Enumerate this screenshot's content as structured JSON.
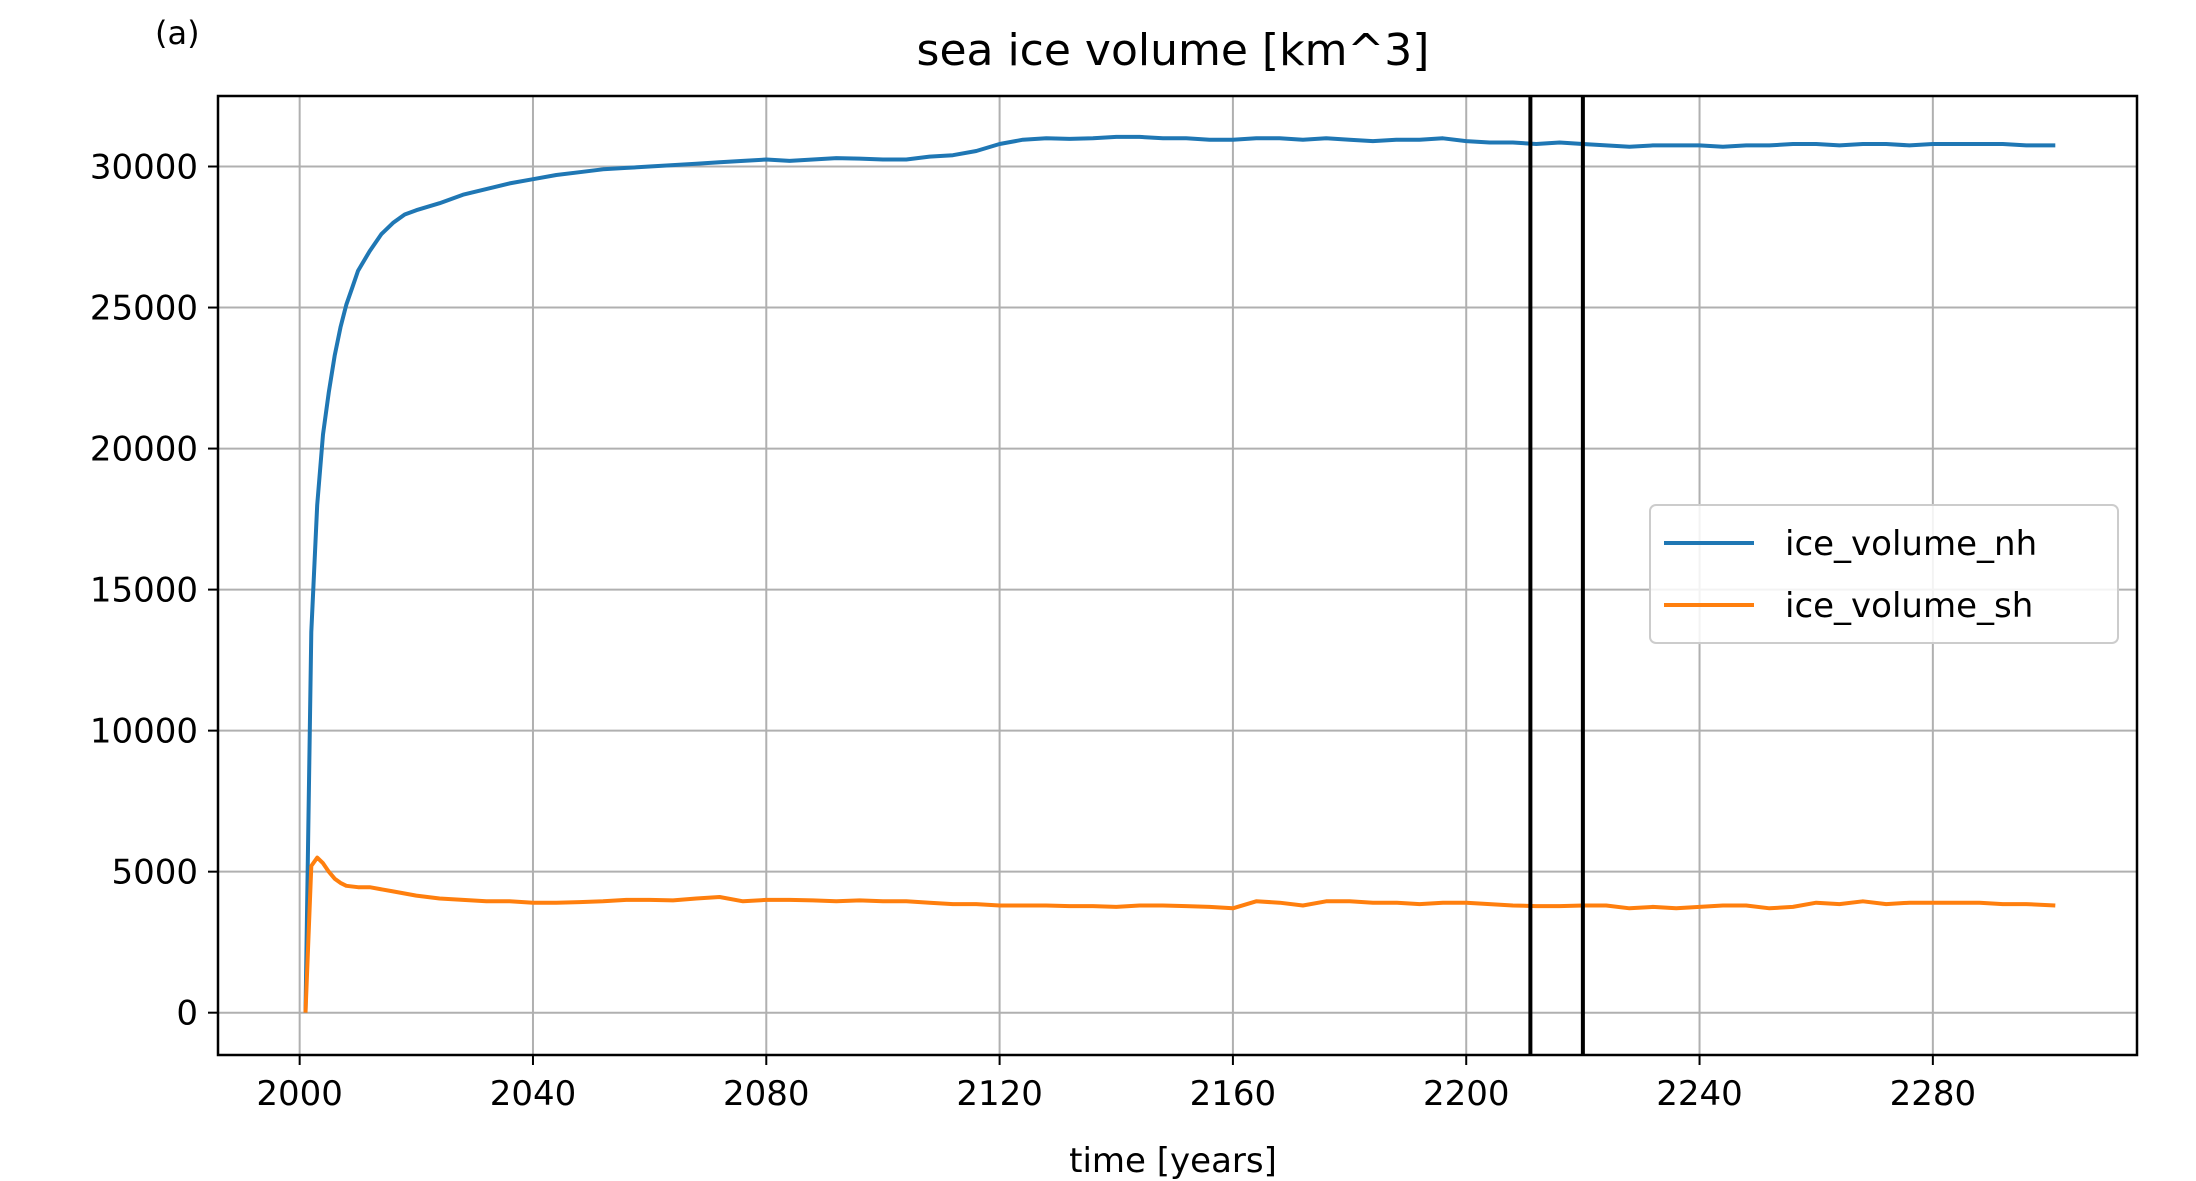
{
  "panel_label": "(a)",
  "chart_data": {
    "type": "line",
    "title": "sea ice volume [km^3]",
    "xlabel": "time [years]",
    "ylabel": "",
    "xlim": [
      1986,
      2315
    ],
    "ylim": [
      -1500,
      32500
    ],
    "xticks": [
      2000,
      2040,
      2080,
      2120,
      2160,
      2200,
      2240,
      2280
    ],
    "yticks": [
      0,
      5000,
      10000,
      15000,
      20000,
      25000,
      30000
    ],
    "grid": true,
    "legend_position": "center-right",
    "vlines": [
      2211,
      2220
    ],
    "series": [
      {
        "name": "ice_volume_nh",
        "color": "#1f77b4",
        "x": [
          2001,
          2002,
          2003,
          2004,
          2005,
          2006,
          2007,
          2008,
          2009,
          2010,
          2012,
          2014,
          2016,
          2018,
          2020,
          2024,
          2028,
          2032,
          2036,
          2040,
          2044,
          2048,
          2052,
          2056,
          2060,
          2064,
          2068,
          2072,
          2076,
          2080,
          2084,
          2088,
          2092,
          2096,
          2100,
          2104,
          2108,
          2112,
          2116,
          2120,
          2124,
          2128,
          2132,
          2136,
          2140,
          2144,
          2148,
          2152,
          2156,
          2160,
          2164,
          2168,
          2172,
          2176,
          2180,
          2184,
          2188,
          2192,
          2196,
          2200,
          2204,
          2208,
          2212,
          2216,
          2220,
          2224,
          2228,
          2232,
          2236,
          2240,
          2244,
          2248,
          2252,
          2256,
          2260,
          2264,
          2268,
          2272,
          2276,
          2280,
          2284,
          2288,
          2292,
          2296,
          2301
        ],
        "values": [
          0,
          13500,
          18000,
          20500,
          22000,
          23300,
          24300,
          25100,
          25700,
          26300,
          27000,
          27600,
          28000,
          28300,
          28450,
          28700,
          29000,
          29200,
          29400,
          29550,
          29700,
          29800,
          29900,
          29950,
          30000,
          30050,
          30100,
          30150,
          30200,
          30250,
          30200,
          30250,
          30300,
          30280,
          30250,
          30250,
          30350,
          30400,
          30550,
          30800,
          30950,
          31000,
          30980,
          31000,
          31050,
          31050,
          31000,
          31000,
          30950,
          30950,
          31000,
          31000,
          30950,
          31000,
          30950,
          30900,
          30950,
          30950,
          31000,
          30900,
          30850,
          30850,
          30800,
          30850,
          30800,
          30750,
          30700,
          30750,
          30750,
          30750,
          30700,
          30750,
          30750,
          30800,
          30800,
          30750,
          30800,
          30800,
          30750,
          30800,
          30800,
          30800,
          30800,
          30750,
          30750
        ]
      },
      {
        "name": "ice_volume_sh",
        "color": "#ff7f0e",
        "x": [
          2001,
          2002,
          2003,
          2004,
          2005,
          2006,
          2007,
          2008,
          2010,
          2012,
          2016,
          2020,
          2024,
          2028,
          2032,
          2036,
          2040,
          2044,
          2048,
          2052,
          2056,
          2060,
          2064,
          2068,
          2072,
          2076,
          2080,
          2084,
          2088,
          2092,
          2096,
          2100,
          2104,
          2108,
          2112,
          2116,
          2120,
          2124,
          2128,
          2132,
          2136,
          2140,
          2144,
          2148,
          2152,
          2156,
          2160,
          2164,
          2168,
          2172,
          2176,
          2180,
          2184,
          2188,
          2192,
          2196,
          2200,
          2204,
          2208,
          2212,
          2216,
          2220,
          2224,
          2228,
          2232,
          2236,
          2240,
          2244,
          2248,
          2252,
          2256,
          2260,
          2264,
          2268,
          2272,
          2276,
          2280,
          2284,
          2288,
          2292,
          2296,
          2301
        ],
        "values": [
          0,
          5200,
          5500,
          5300,
          5000,
          4750,
          4600,
          4500,
          4450,
          4450,
          4300,
          4150,
          4050,
          4000,
          3950,
          3950,
          3900,
          3900,
          3920,
          3950,
          4000,
          4000,
          3980,
          4050,
          4100,
          3950,
          4000,
          4000,
          3980,
          3950,
          3980,
          3950,
          3950,
          3900,
          3850,
          3850,
          3800,
          3800,
          3800,
          3780,
          3780,
          3750,
          3800,
          3800,
          3780,
          3750,
          3700,
          3950,
          3900,
          3800,
          3950,
          3950,
          3900,
          3900,
          3850,
          3900,
          3900,
          3850,
          3800,
          3780,
          3780,
          3800,
          3800,
          3700,
          3750,
          3700,
          3750,
          3800,
          3800,
          3700,
          3750,
          3900,
          3850,
          3950,
          3850,
          3900,
          3900,
          3900,
          3900,
          3850,
          3850,
          3800
        ]
      }
    ]
  }
}
